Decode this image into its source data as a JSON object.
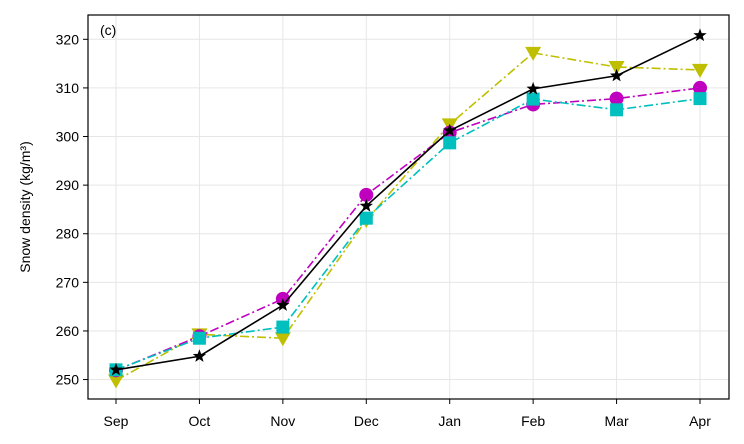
{
  "chart_data": {
    "type": "line",
    "panel_label": "(c)",
    "xlabel": "",
    "ylabel": "Snow density (kg/m³)",
    "categories": [
      "Sep",
      "Oct",
      "Nov",
      "Dec",
      "Jan",
      "Feb",
      "Mar",
      "Apr"
    ],
    "ylim": [
      246,
      325
    ],
    "yticks": [
      250,
      260,
      270,
      280,
      290,
      300,
      310,
      320
    ],
    "grid": true,
    "legend": "none",
    "series": [
      {
        "color": "#bfbf00",
        "linestyle": "dashdot",
        "marker": "triangle-down",
        "values": [
          249.8,
          259.3,
          258.5,
          282.8,
          302.5,
          317.2,
          314.3,
          313.7
        ]
      },
      {
        "color": "#bf00bf",
        "linestyle": "dashdot",
        "marker": "circle",
        "values": [
          251.9,
          258.9,
          266.6,
          288.0,
          300.8,
          306.6,
          307.8,
          310.0
        ]
      },
      {
        "color": "#00bfbf",
        "linestyle": "dashdot",
        "marker": "square",
        "values": [
          252.0,
          258.5,
          260.8,
          283.2,
          298.7,
          307.7,
          305.5,
          307.8
        ]
      },
      {
        "color": "#000000",
        "linestyle": "solid",
        "marker": "star",
        "values": [
          252.0,
          254.8,
          265.3,
          285.7,
          301.2,
          309.8,
          312.5,
          320.8
        ]
      }
    ]
  }
}
